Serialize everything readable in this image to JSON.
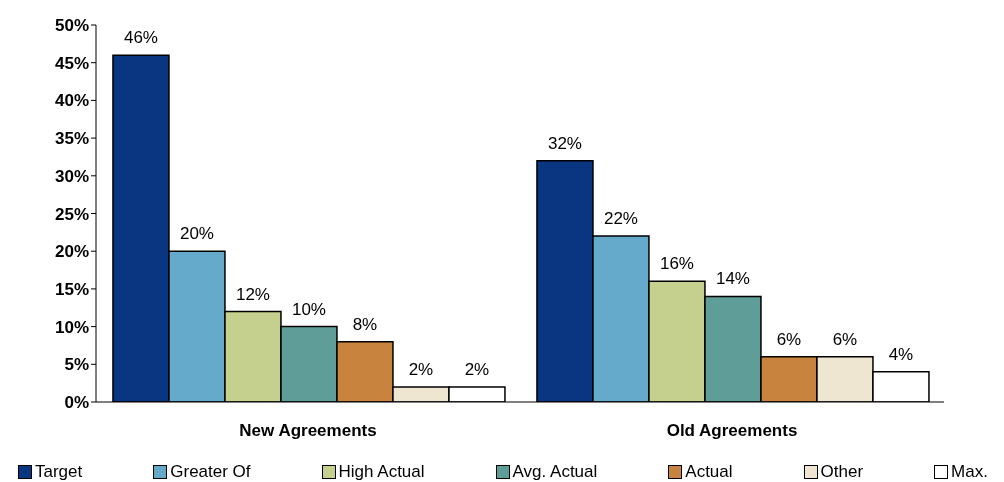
{
  "chart_data": {
    "type": "bar",
    "categories": [
      "New Agreements",
      "Old Agreements"
    ],
    "series": [
      {
        "name": "Target",
        "color": "#0a3580",
        "values": [
          46,
          32
        ],
        "value_labels": [
          "46%",
          "32%"
        ]
      },
      {
        "name": "Greater Of",
        "color": "#65a9cb",
        "values": [
          20,
          22
        ],
        "value_labels": [
          "20%",
          "22%"
        ]
      },
      {
        "name": "High Actual",
        "color": "#c5d08f",
        "values": [
          12,
          16
        ],
        "value_labels": [
          "12%",
          "16%"
        ]
      },
      {
        "name": "Avg. Actual",
        "color": "#5f9e98",
        "values": [
          10,
          14
        ],
        "value_labels": [
          "10%",
          "14%"
        ]
      },
      {
        "name": "Actual",
        "color": "#c8843e",
        "values": [
          8,
          6
        ],
        "value_labels": [
          "8%",
          "6%"
        ]
      },
      {
        "name": "Other",
        "color": "#eee6d0",
        "values": [
          2,
          6
        ],
        "value_labels": [
          "2%",
          "6%"
        ]
      },
      {
        "name": "Max.",
        "color": "#ffffff",
        "values": [
          2,
          4
        ],
        "value_labels": [
          "2%",
          "4%"
        ]
      }
    ],
    "ylim": [
      0,
      50
    ],
    "yticks": [
      {
        "value": 0,
        "label": "0%"
      },
      {
        "value": 5,
        "label": "5%"
      },
      {
        "value": 10,
        "label": "10%"
      },
      {
        "value": 15,
        "label": "15%"
      },
      {
        "value": 20,
        "label": "20%"
      },
      {
        "value": 25,
        "label": "25%"
      },
      {
        "value": 30,
        "label": "30%"
      },
      {
        "value": 35,
        "label": "35%"
      },
      {
        "value": 40,
        "label": "40%"
      },
      {
        "value": 45,
        "label": "45%"
      },
      {
        "value": 50,
        "label": "50%"
      }
    ],
    "grid": false,
    "legend": "bottom"
  }
}
